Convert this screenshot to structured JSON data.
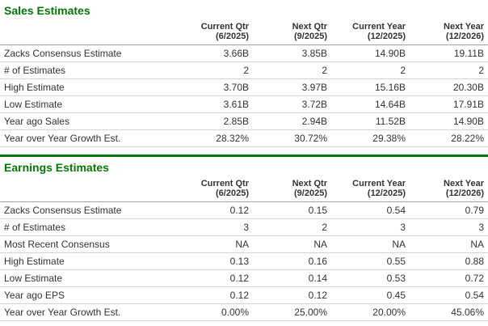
{
  "colors": {
    "accent_green": "#067806",
    "header_border": "#a3a3a3",
    "row_border": "#d4d4d4",
    "text": "#333333"
  },
  "sales": {
    "title": "Sales Estimates",
    "columns": [
      {
        "line1": "Current Qtr",
        "line2": "(6/2025)"
      },
      {
        "line1": "Next Qtr",
        "line2": "(9/2025)"
      },
      {
        "line1": "Current Year",
        "line2": "(12/2025)"
      },
      {
        "line1": "Next Year",
        "line2": "(12/2026)"
      }
    ],
    "rows": [
      {
        "label": "Zacks Consensus Estimate",
        "values": [
          "3.66B",
          "3.85B",
          "14.90B",
          "19.11B"
        ]
      },
      {
        "label": "# of Estimates",
        "values": [
          "2",
          "2",
          "2",
          "2"
        ]
      },
      {
        "label": "High Estimate",
        "values": [
          "3.70B",
          "3.97B",
          "15.16B",
          "20.30B"
        ]
      },
      {
        "label": "Low Estimate",
        "values": [
          "3.61B",
          "3.72B",
          "14.64B",
          "17.91B"
        ]
      },
      {
        "label": "Year ago Sales",
        "values": [
          "2.85B",
          "2.94B",
          "11.52B",
          "14.90B"
        ]
      },
      {
        "label": "Year over Year Growth Est.",
        "values": [
          "28.32%",
          "30.72%",
          "29.38%",
          "28.22%"
        ]
      }
    ]
  },
  "earnings": {
    "title": "Earnings Estimates",
    "columns": [
      {
        "line1": "Current Qtr",
        "line2": "(6/2025)"
      },
      {
        "line1": "Next Qtr",
        "line2": "(9/2025)"
      },
      {
        "line1": "Current Year",
        "line2": "(12/2025)"
      },
      {
        "line1": "Next Year",
        "line2": "(12/2026)"
      }
    ],
    "rows": [
      {
        "label": "Zacks Consensus Estimate",
        "values": [
          "0.12",
          "0.15",
          "0.54",
          "0.79"
        ]
      },
      {
        "label": "# of Estimates",
        "values": [
          "3",
          "2",
          "3",
          "3"
        ]
      },
      {
        "label": "Most Recent Consensus",
        "values": [
          "NA",
          "NA",
          "NA",
          "NA"
        ]
      },
      {
        "label": "High Estimate",
        "values": [
          "0.13",
          "0.16",
          "0.55",
          "0.88"
        ]
      },
      {
        "label": "Low Estimate",
        "values": [
          "0.12",
          "0.14",
          "0.53",
          "0.72"
        ]
      },
      {
        "label": "Year ago EPS",
        "values": [
          "0.12",
          "0.12",
          "0.45",
          "0.54"
        ]
      },
      {
        "label": "Year over Year Growth Est.",
        "values": [
          "0.00%",
          "25.00%",
          "20.00%",
          "45.06%"
        ]
      }
    ]
  }
}
